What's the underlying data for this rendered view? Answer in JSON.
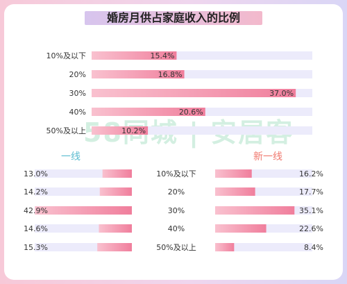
{
  "title": "婚房月供占家庭收入的比例",
  "watermark": "58同城 | 安居客",
  "colors": {
    "bar": "#f07e9c",
    "bar_light": "#f9c1cf",
    "track": "#ecebfb",
    "tier1": "#5bbcd0",
    "newtier1": "#f0786e",
    "text": "#333333"
  },
  "chart_data": [
    {
      "type": "bar",
      "orientation": "horizontal",
      "categories": [
        "10%及以下",
        "20%",
        "30%",
        "40%",
        "50%及以上"
      ],
      "values": [
        15.4,
        16.8,
        37.0,
        20.6,
        10.2
      ],
      "labels": [
        "15.4%",
        "16.8%",
        "37.0%",
        "20.6%",
        "10.2%"
      ]
    },
    {
      "type": "bar",
      "orientation": "horizontal",
      "title": "一线",
      "categories": [
        "10%及以下",
        "20%",
        "30%",
        "40%",
        "50%及以上"
      ],
      "values": [
        13.0,
        14.2,
        42.9,
        14.6,
        15.3
      ],
      "labels": [
        "13.0%",
        "14.2%",
        "42.9%",
        "14.6%",
        "15.3%"
      ]
    },
    {
      "type": "bar",
      "orientation": "horizontal",
      "title": "新一线",
      "categories": [
        "10%及以下",
        "20%",
        "30%",
        "40%",
        "50%及以上"
      ],
      "values": [
        16.2,
        17.7,
        35.1,
        22.6,
        8.4
      ],
      "labels": [
        "16.2%",
        "17.7%",
        "35.1%",
        "22.6%",
        "8.4%"
      ]
    }
  ]
}
